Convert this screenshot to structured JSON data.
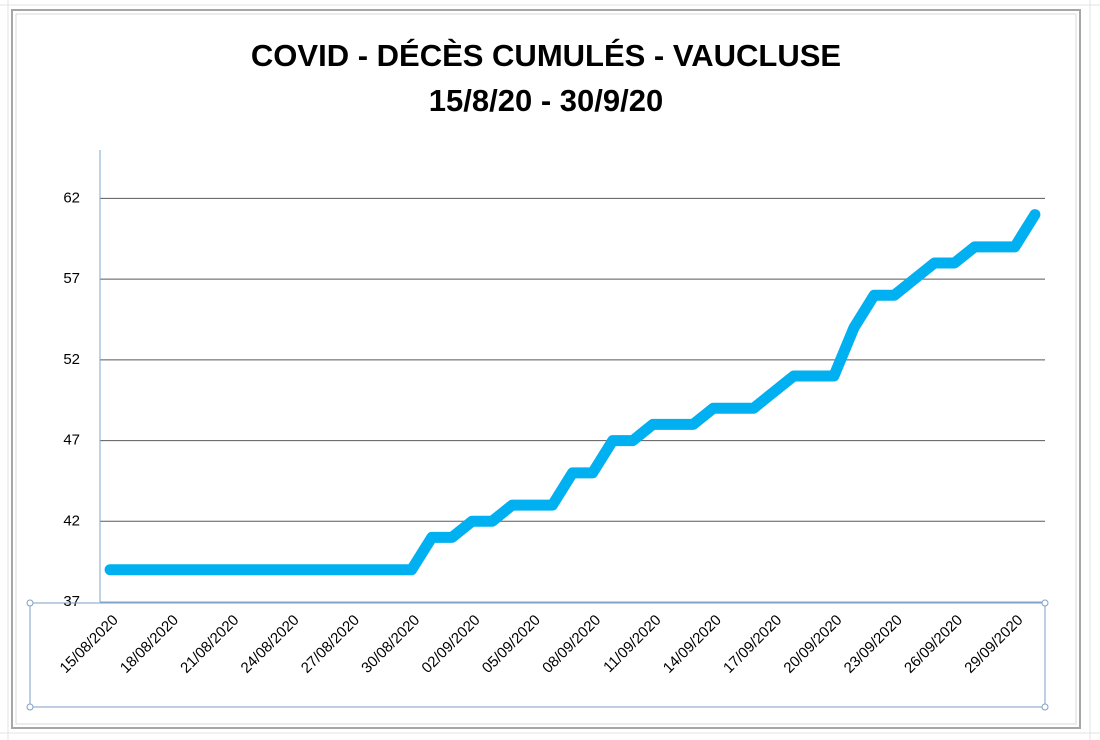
{
  "chart_data": {
    "type": "line",
    "title": "COVID - DÉCÈS CUMULÉS - VAUCLUSE",
    "subtitle": "15/8/20 - 30/9/20",
    "categories": [
      "15/08/2020",
      null,
      null,
      "18/08/2020",
      null,
      null,
      "21/08/2020",
      null,
      null,
      "24/08/2020",
      null,
      null,
      "27/08/2020",
      null,
      null,
      "30/08/2020",
      null,
      null,
      "02/09/2020",
      null,
      null,
      "05/09/2020",
      null,
      null,
      "08/09/2020",
      null,
      null,
      "11/09/2020",
      null,
      null,
      "14/09/2020",
      null,
      null,
      "17/09/2020",
      null,
      null,
      "20/09/2020",
      null,
      null,
      "23/09/2020",
      null,
      null,
      "26/09/2020",
      null,
      null,
      "29/09/2020",
      null
    ],
    "series": [
      {
        "name": "Décès cumulés",
        "color": "#00b0f0",
        "values": [
          39,
          39,
          39,
          39,
          39,
          39,
          39,
          39,
          39,
          39,
          39,
          39,
          39,
          39,
          39,
          39,
          41,
          41,
          42,
          42,
          43,
          43,
          43,
          45,
          45,
          47,
          47,
          48,
          48,
          48,
          49,
          49,
          49,
          50,
          51,
          51,
          51,
          54,
          56,
          56,
          57,
          58,
          58,
          59,
          59,
          59,
          61
        ]
      }
    ],
    "ylim": [
      37,
      65
    ],
    "yticks": [
      37,
      42,
      47,
      52,
      57,
      62
    ],
    "grid": true
  }
}
